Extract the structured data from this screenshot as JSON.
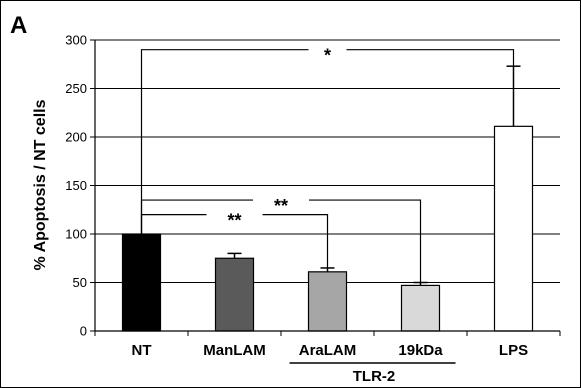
{
  "chart_data": {
    "type": "bar",
    "panel_label": "A",
    "ylabel": "% Apoptosis / NT cells",
    "ylim": [
      0,
      300
    ],
    "yticks": [
      0,
      50,
      100,
      150,
      200,
      250,
      300
    ],
    "grid": true,
    "categories": [
      "NT",
      "ManLAM",
      "AraLAM",
      "19kDa",
      "LPS"
    ],
    "values": [
      100,
      75,
      61,
      47,
      211
    ],
    "errors": [
      0,
      5,
      4,
      3,
      62
    ],
    "colors": [
      "#000000",
      "#5a5a5a",
      "#a6a6a6",
      "#d9d9d9",
      "#ffffff"
    ],
    "group_label": "TLR-2",
    "annotations": [
      {
        "from": "NT",
        "to": "LPS",
        "level": 290,
        "text": "*"
      },
      {
        "from": "NT",
        "to": "19kDa",
        "level": 135,
        "text": "**"
      },
      {
        "from": "NT",
        "to": "AraLAM",
        "level": 120,
        "text": "**"
      }
    ]
  }
}
